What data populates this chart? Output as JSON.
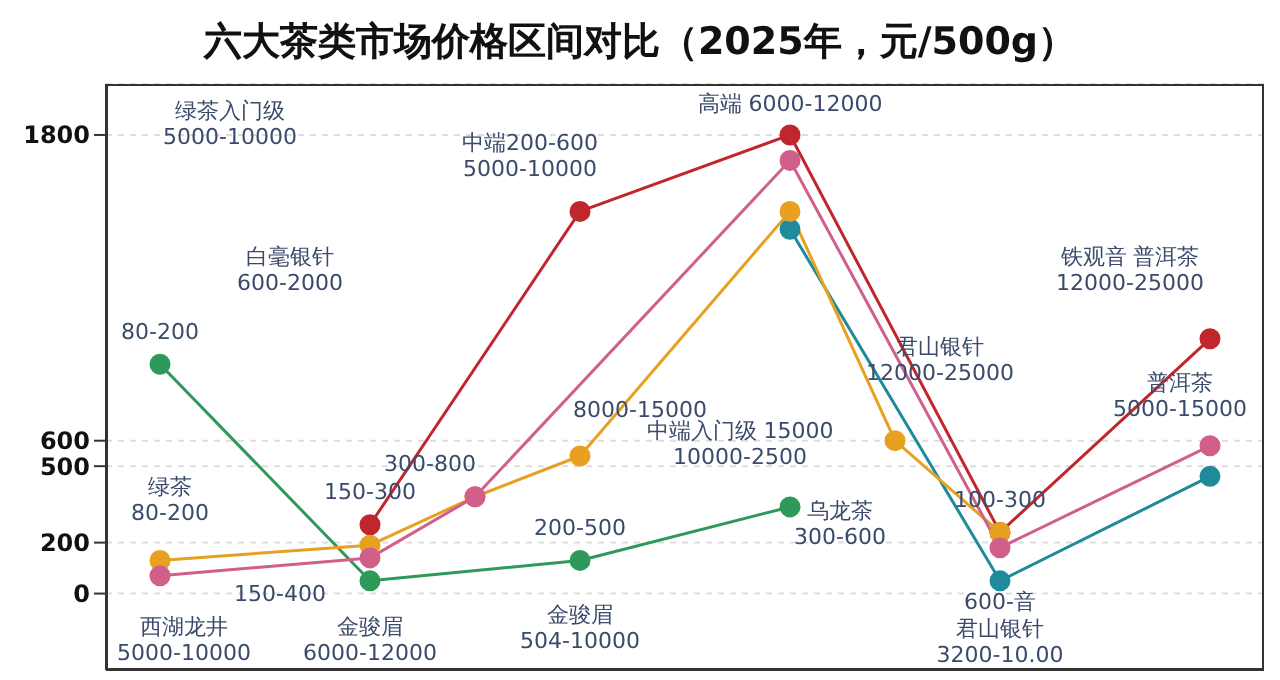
{
  "chart_data": {
    "type": "line",
    "title": "六大茶类市场价格区间对比（2025年，元/500g）",
    "categories": [
      null,
      null,
      null,
      null,
      null,
      null,
      null,
      null,
      null,
      null,
      null
    ],
    "ylim": [
      -300,
      2000
    ],
    "yticks": [
      0,
      200,
      500,
      600,
      1800
    ],
    "tick_labels": "y",
    "grid": "y",
    "marker": "circle",
    "line_style": "solid",
    "series": [
      {
        "color": "#2e9a5a",
        "values": [
          900,
          null,
          50,
          null,
          130,
          null,
          340,
          null,
          null,
          null,
          null
        ]
      },
      {
        "color": "#1f8a9a",
        "values": [
          null,
          null,
          null,
          null,
          null,
          null,
          1430,
          null,
          50,
          null,
          460
        ]
      },
      {
        "color": "#c0272d",
        "values": [
          null,
          null,
          270,
          null,
          1500,
          null,
          1800,
          null,
          240,
          null,
          1000
        ]
      },
      {
        "color": "#e8a020",
        "values": [
          130,
          null,
          190,
          380,
          540,
          null,
          1500,
          600,
          240,
          null,
          null
        ]
      },
      {
        "color": "#d0608a",
        "values": [
          70,
          null,
          140,
          380,
          null,
          null,
          1700,
          null,
          180,
          null,
          580
        ]
      }
    ],
    "annotations": [
      "绿茶入门级\n5000-10000",
      "80-200",
      "白毫银针\n600-2000",
      "中端200-600\n5000-10000",
      "高端 6000-12000",
      "8000-15000",
      "君山银针\n12000-25000",
      "铁观音 普洱茶\n12000-25000",
      "普洱茶\n5000-15000",
      "300-800",
      "绿茶\n80-200",
      "150-300",
      "150-400",
      "西湖龙井\n5000-10000",
      "金骏眉\n6000-12000",
      "200-500",
      "金骏眉\n504-10000",
      "中端入门级 15000\n10000-2500",
      "乌龙茶\n300-600",
      "100-300",
      "600-音",
      "君山银针\n3200-10.00"
    ]
  }
}
